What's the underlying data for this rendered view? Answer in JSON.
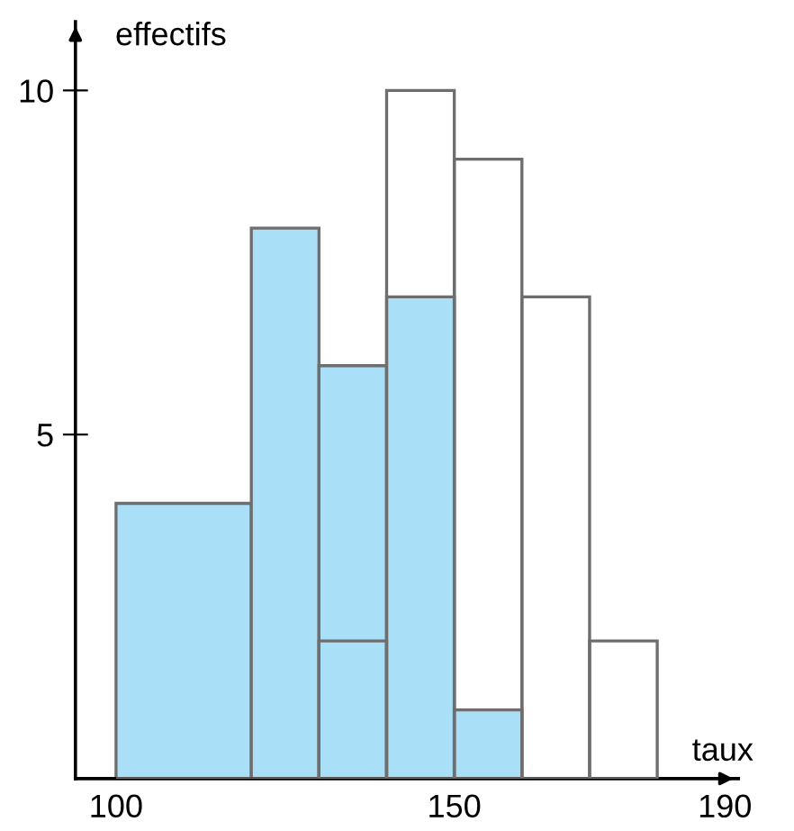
{
  "chart_data": {
    "type": "histogram",
    "xlabel": "taux",
    "ylabel": "effectifs",
    "bins": [
      100,
      120,
      130,
      140,
      150,
      160,
      170,
      180
    ],
    "series": [
      {
        "color": "#aadff8",
        "values": [
          4,
          8,
          6,
          7,
          1,
          0,
          0
        ]
      },
      {
        "color": "#6e6e6e",
        "values": [
          0,
          0,
          2,
          10,
          9,
          7,
          2
        ]
      }
    ],
    "xlim": [
      94,
      192
    ],
    "ylim": [
      0,
      11
    ],
    "xticks": [
      100,
      150,
      190
    ],
    "yticks": [
      5,
      10
    ],
    "grid": false,
    "legend": false
  }
}
